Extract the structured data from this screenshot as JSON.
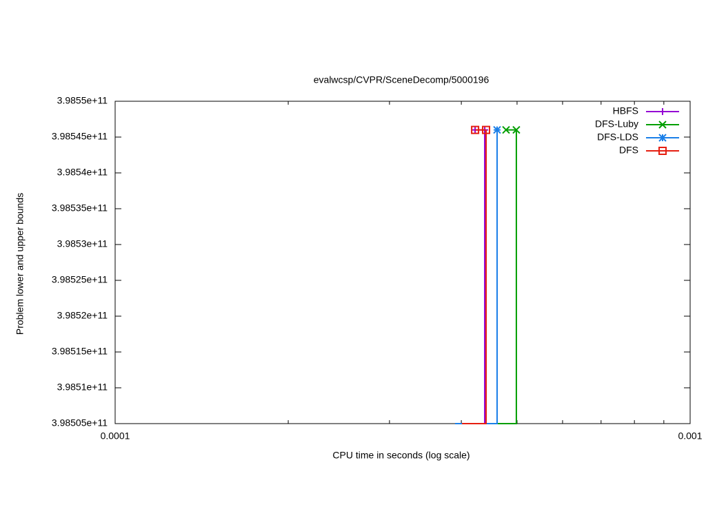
{
  "chart_data": {
    "type": "line",
    "title": "evalwcsp/CVPR/SceneDecomp/5000196",
    "x_label": "CPU time in seconds (log scale)",
    "y_label": "Problem lower and upper bounds",
    "xscale": "log",
    "xlim": [
      0.0001,
      0.001
    ],
    "xticks": [
      0.0001,
      0.001
    ],
    "xminorticks": [
      0.0002,
      0.0003,
      0.0004,
      0.0005,
      0.0006,
      0.0007,
      0.0008,
      0.0009
    ],
    "ylim": [
      398505000000,
      398550000000
    ],
    "yticks": [
      {
        "value": 398505000000,
        "label": "3.98505e+11"
      },
      {
        "value": 398510000000,
        "label": "3.9851e+11"
      },
      {
        "value": 398515000000,
        "label": "3.98515e+11"
      },
      {
        "value": 398520000000,
        "label": "3.9852e+11"
      },
      {
        "value": 398525000000,
        "label": "3.98525e+11"
      },
      {
        "value": 398530000000,
        "label": "3.9853e+11"
      },
      {
        "value": 398535000000,
        "label": "3.98535e+11"
      },
      {
        "value": 398540000000,
        "label": "3.9854e+11"
      },
      {
        "value": 398545000000,
        "label": "3.98545e+11"
      },
      {
        "value": 398550000000,
        "label": "3.9855e+11"
      }
    ],
    "legend": "upper right",
    "series": [
      {
        "name": "HBFS",
        "color": "#9400d3",
        "marker": "plus",
        "lower": {
          "x": [
            0.0004011,
            0.0004393,
            0.0004393
          ],
          "values": [
            398505000000,
            398505000000,
            398546000000
          ]
        },
        "upper": {
          "x": [
            0.0004227,
            0.0004393
          ],
          "values": [
            398546000000,
            398546000000
          ]
        }
      },
      {
        "name": "DFS-Luby",
        "color": "#009e00",
        "marker": "cross",
        "lower": {
          "x": [
            0.0004417,
            0.0004986,
            0.0004986
          ],
          "values": [
            398505000000,
            398505000000,
            398546000000
          ]
        },
        "upper": {
          "x": [
            0.0004785,
            0.0004986
          ],
          "values": [
            398546000000,
            398546000000
          ]
        }
      },
      {
        "name": "DFS-LDS",
        "color": "#1a7fe8",
        "marker": "star",
        "lower": {
          "x": [
            0.0003901,
            0.0004616,
            0.0004616
          ],
          "values": [
            398505000000,
            398505000000,
            398546000000
          ]
        },
        "upper": {
          "x": [
            0.0004616
          ],
          "values": [
            398546000000
          ]
        }
      },
      {
        "name": "DFS",
        "color": "#e51e10",
        "marker": "square",
        "lower": {
          "x": [
            0.0004011,
            0.0004417,
            0.0004417
          ],
          "values": [
            398505000000,
            398505000000,
            398546000000
          ]
        },
        "upper": {
          "x": [
            0.0004227,
            0.0004417
          ],
          "values": [
            398546000000,
            398546000000
          ]
        }
      }
    ]
  }
}
